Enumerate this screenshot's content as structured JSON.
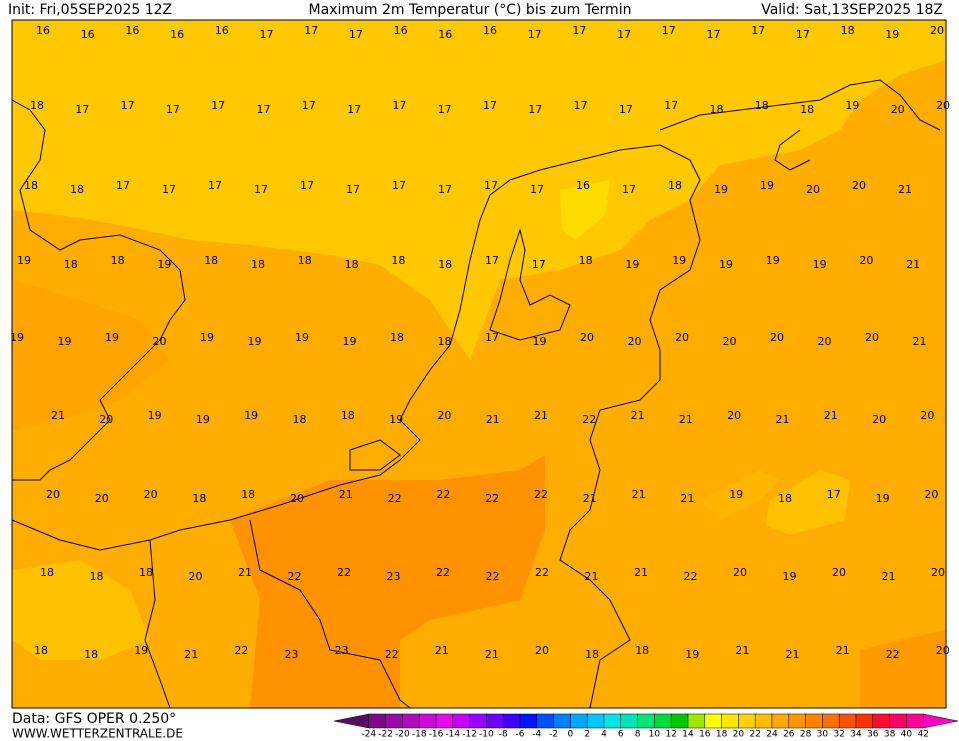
{
  "header": {
    "init": "Init: Fri,05SEP2025 12Z",
    "title": "Maximum 2m Temperatur (°C) bis zum Termin",
    "valid": "Valid: Sat,13SEP2025 18Z"
  },
  "map": {
    "labels": [
      [
        16,
        16,
        16,
        16,
        16,
        17,
        17,
        17,
        16,
        16,
        16,
        17,
        17,
        17,
        17,
        17,
        17,
        17,
        18,
        19,
        20
      ],
      [
        18,
        17,
        17,
        17,
        17,
        17,
        17,
        17,
        17,
        17,
        17,
        17,
        17,
        17,
        17,
        18,
        18,
        18,
        19,
        20,
        20
      ],
      [
        18,
        18,
        17,
        17,
        17,
        17,
        17,
        17,
        17,
        17,
        17,
        17,
        16,
        17,
        18,
        19,
        19,
        20,
        20,
        21
      ],
      [
        19,
        18,
        18,
        19,
        18,
        18,
        18,
        18,
        18,
        18,
        17,
        17,
        18,
        19,
        19,
        19,
        19,
        19,
        20,
        21
      ],
      [
        19,
        19,
        19,
        20,
        19,
        19,
        19,
        19,
        18,
        18,
        17,
        19,
        20,
        20,
        20,
        20,
        20,
        20,
        20,
        21
      ],
      [
        21,
        20,
        19,
        19,
        19,
        18,
        18,
        19,
        20,
        21,
        21,
        22,
        21,
        21,
        20,
        21,
        21,
        20,
        20
      ],
      [
        20,
        20,
        20,
        18,
        18,
        20,
        21,
        22,
        22,
        22,
        22,
        21,
        21,
        21,
        19,
        18,
        17,
        19,
        20
      ],
      [
        18,
        18,
        18,
        20,
        21,
        22,
        22,
        23,
        22,
        22,
        22,
        21,
        21,
        22,
        20,
        19,
        20,
        21,
        20
      ],
      [
        18,
        18,
        19,
        21,
        22,
        23,
        23,
        22,
        21,
        21,
        20,
        18,
        18,
        19,
        21,
        21,
        21,
        22,
        20
      ]
    ]
  },
  "footer": {
    "source": "Data: GFS OPER 0.250°",
    "site": "WWW.WETTERZENTRALE.DE"
  },
  "colorbar": {
    "labels": [
      -24,
      -22,
      -20,
      -18,
      -16,
      -14,
      -12,
      -10,
      -8,
      -6,
      -4,
      -2,
      0,
      2,
      4,
      6,
      8,
      10,
      12,
      14,
      16,
      18,
      20,
      22,
      24,
      26,
      28,
      30,
      32,
      34,
      36,
      38,
      40,
      42
    ],
    "colors": [
      "#5c0a6a",
      "#7a0a88",
      "#990aa6",
      "#b40ac0",
      "#d20ad8",
      "#e60aea",
      "#c800ff",
      "#9a00ff",
      "#6e00ff",
      "#3c00ff",
      "#0014ff",
      "#0050ff",
      "#0080ff",
      "#00a8ff",
      "#00c8ff",
      "#00e6e6",
      "#00e6b4",
      "#00e67a",
      "#00dc3c",
      "#00c800",
      "#a0e600",
      "#ffff00",
      "#ffe600",
      "#ffd200",
      "#ffbe00",
      "#ffaa00",
      "#ff9600",
      "#ff8200",
      "#ff6e00",
      "#ff5000",
      "#ff3200",
      "#ff0a32",
      "#ff0064",
      "#ff0096",
      "#ff00c8"
    ]
  }
}
